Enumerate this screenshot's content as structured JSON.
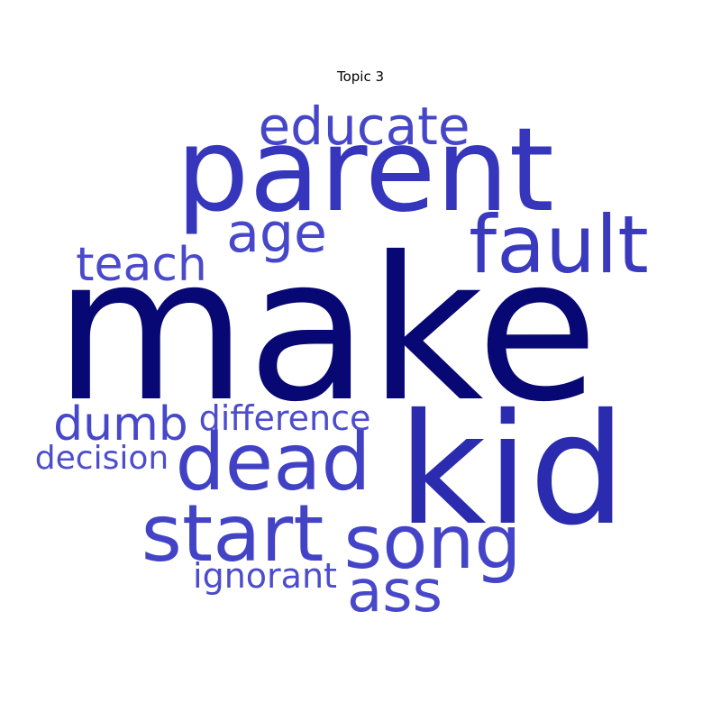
{
  "chart_data": {
    "type": "wordcloud",
    "title": "Topic 3",
    "words": [
      {
        "text": "make",
        "weight": 1.0,
        "color": "#080874"
      },
      {
        "text": "kid",
        "weight": 0.78,
        "color": "#2b2bb0"
      },
      {
        "text": "parent",
        "weight": 0.66,
        "color": "#3636bd"
      },
      {
        "text": "fault",
        "weight": 0.45,
        "color": "#3a3abf"
      },
      {
        "text": "dead",
        "weight": 0.44,
        "color": "#4141c5"
      },
      {
        "text": "start",
        "weight": 0.44,
        "color": "#4343c6"
      },
      {
        "text": "song",
        "weight": 0.42,
        "color": "#4444c8"
      },
      {
        "text": "ass",
        "weight": 0.35,
        "color": "#4848ca"
      },
      {
        "text": "educate",
        "weight": 0.32,
        "color": "#4646c8"
      },
      {
        "text": "age",
        "weight": 0.33,
        "color": "#4747c9"
      },
      {
        "text": "dumb",
        "weight": 0.3,
        "color": "#4747c9"
      },
      {
        "text": "teach",
        "weight": 0.29,
        "color": "#4a4acb"
      },
      {
        "text": "difference",
        "weight": 0.22,
        "color": "#4c4ccc"
      },
      {
        "text": "ignorant",
        "weight": 0.22,
        "color": "#4c4ccc"
      },
      {
        "text": "decision",
        "weight": 0.2,
        "color": "#4d4dcd"
      }
    ]
  }
}
